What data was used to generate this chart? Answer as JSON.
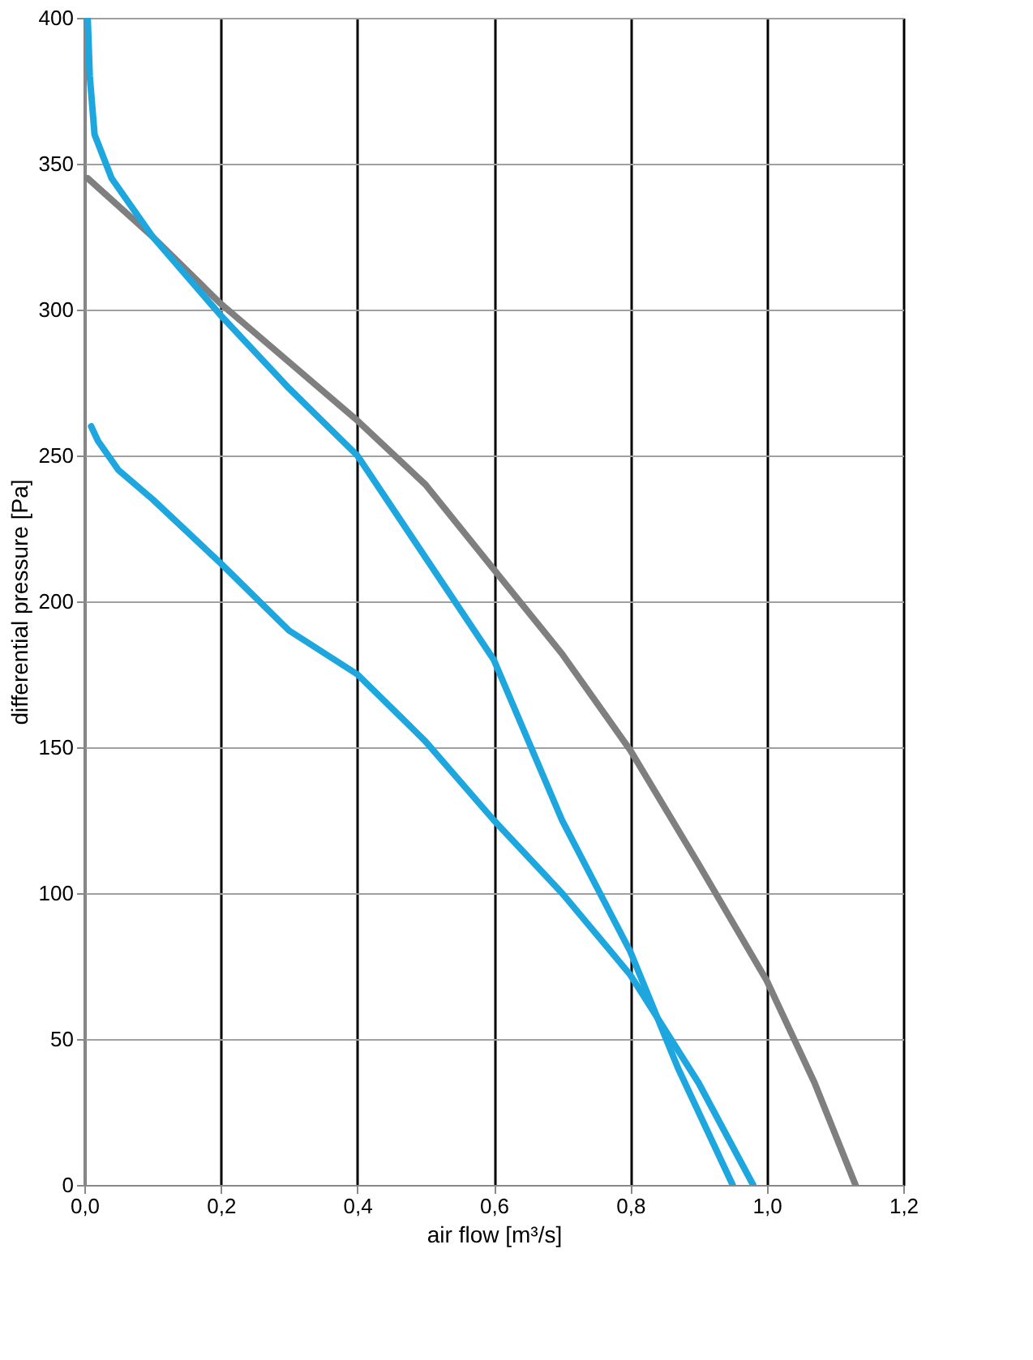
{
  "chart_data": {
    "type": "line",
    "xlabel": "air flow [m³/s]",
    "ylabel": "differential pressure [Pa]",
    "xlim": [
      0,
      1.2
    ],
    "ylim": [
      0,
      400
    ],
    "xticks": [
      {
        "value": 0,
        "label": "0,0"
      },
      {
        "value": 0.2,
        "label": "0,2"
      },
      {
        "value": 0.4,
        "label": "0,4"
      },
      {
        "value": 0.6,
        "label": "0,6"
      },
      {
        "value": 0.8,
        "label": "0,8"
      },
      {
        "value": 1.0,
        "label": "1,0"
      },
      {
        "value": 1.2,
        "label": "1,2"
      }
    ],
    "yticks": [
      0,
      50,
      100,
      150,
      200,
      250,
      300,
      350,
      400
    ],
    "grid": true,
    "legend": false,
    "marker": "none",
    "line_style": "solid",
    "series": [
      {
        "color": "#7f7f7f",
        "x": [
          0.005,
          0.1,
          0.2,
          0.3,
          0.4,
          0.5,
          0.6,
          0.7,
          0.8,
          0.9,
          1.0,
          1.07,
          1.13
        ],
        "values": [
          345,
          325,
          302,
          282,
          262,
          240,
          211,
          182,
          149,
          110,
          70,
          35,
          0
        ]
      },
      {
        "color": "#1ea6df",
        "x": [
          0.005,
          0.008,
          0.015,
          0.04,
          0.1,
          0.2,
          0.3,
          0.4,
          0.5,
          0.6,
          0.7,
          0.8,
          0.87,
          0.95
        ],
        "values": [
          400,
          380,
          360,
          345,
          325,
          298,
          273,
          250,
          215,
          180,
          125,
          80,
          40,
          0
        ]
      },
      {
        "color": "#1ea6df",
        "x": [
          0.01,
          0.02,
          0.05,
          0.1,
          0.2,
          0.3,
          0.4,
          0.5,
          0.6,
          0.7,
          0.8,
          0.9,
          0.98
        ],
        "values": [
          260,
          255,
          245,
          235,
          213,
          190,
          175,
          152,
          125,
          100,
          72,
          35,
          0
        ]
      }
    ]
  }
}
